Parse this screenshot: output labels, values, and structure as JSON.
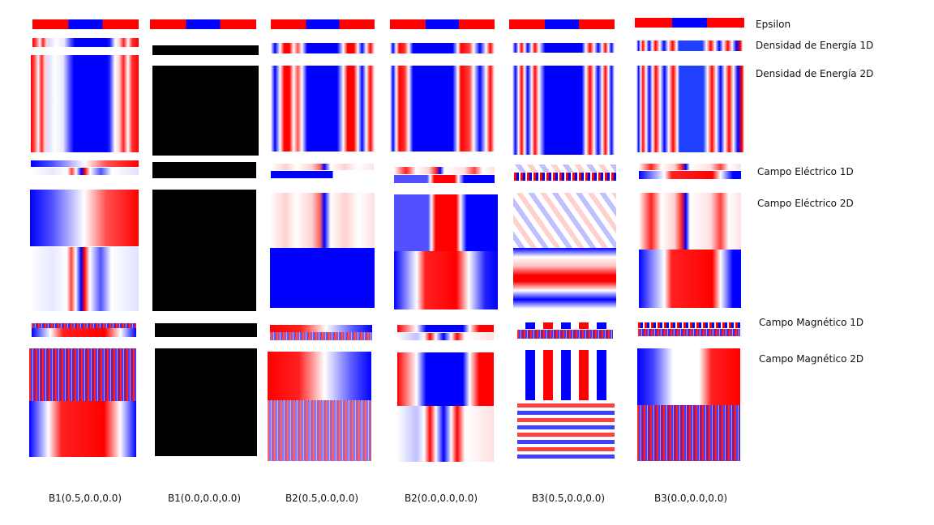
{
  "row_labels": {
    "epsilon": "Epsilon",
    "energy_1d": "Densidad de Energía 1D",
    "energy_2d": "Densidad de Energía 2D",
    "electric_1d": "Campo Eléctrico 1D",
    "electric_2d": "Campo Eléctrico 2D",
    "magnetic_1d": "Campo Magnético 1D",
    "magnetic_2d": "Campo Magnético 2D"
  },
  "columns": [
    {
      "label": "B1(0.5,0.0,0.0)"
    },
    {
      "label": "B1(0.0,0.0,0.0)"
    },
    {
      "label": "B2(0.5,0.0,0.0)"
    },
    {
      "label": "B2(0.0,0.0,0.0)"
    },
    {
      "label": "B3(0.5,0.0,0.0)"
    },
    {
      "label": "B3(0.0,0.0,0.0)"
    }
  ],
  "colors": {
    "red": "#ff0000",
    "blue": "#0000ff",
    "white": "#ffffff",
    "black": "#000000"
  }
}
